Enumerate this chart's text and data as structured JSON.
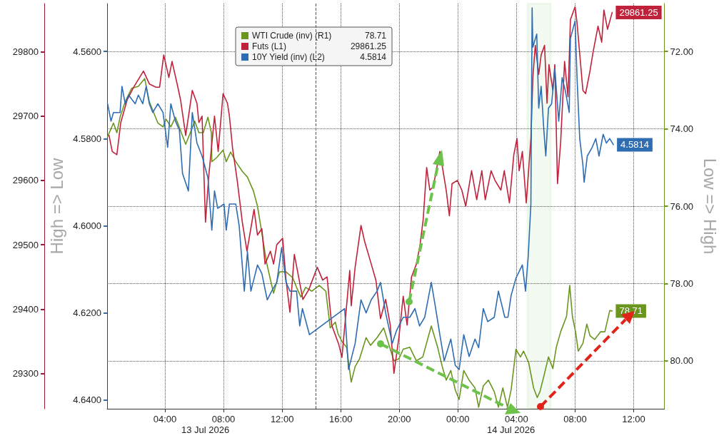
{
  "chart_data": {
    "type": "line",
    "marker": "none",
    "grid": true,
    "legend": "top",
    "xlim": [
      "2026-07-13T00:03",
      "2026-07-14T14:06"
    ],
    "xticks": [
      {
        "value": "2026-07-13T04:00",
        "label": "04:00"
      },
      {
        "value": "2026-07-13T08:00",
        "label": "08:00"
      },
      {
        "value": "2026-07-13T12:00",
        "label": "12:00"
      },
      {
        "value": "2026-07-13T16:00",
        "label": "16:00"
      },
      {
        "value": "2026-07-13T20:00",
        "label": "20:00"
      },
      {
        "value": "2026-07-14T00:00",
        "label": "00:00"
      },
      {
        "value": "2026-07-14T04:00",
        "label": "04:00"
      },
      {
        "value": "2026-07-14T08:00",
        "label": "08:00"
      },
      {
        "value": "2026-07-14T12:00",
        "label": "12:00"
      }
    ],
    "ylim": [
      29245,
      29875
    ],
    "yticks": [
      29300,
      29400,
      29500,
      29600,
      29700,
      29800
    ],
    "y2lim": [
      4.642,
      4.549
    ],
    "y2ticks": [
      {
        "value": 4.56,
        "label": "4.5600"
      },
      {
        "value": 4.58,
        "label": "4.5800"
      },
      {
        "value": 4.6,
        "label": "4.6000"
      },
      {
        "value": 4.62,
        "label": "4.6200"
      },
      {
        "value": 4.64,
        "label": "4.6400"
      }
    ],
    "y2label": "High => Low",
    "y3lim": [
      81.24,
      70.76
    ],
    "y3ticks": [
      {
        "value": 72,
        "label": "72.00"
      },
      {
        "value": 74,
        "label": "74.00"
      },
      {
        "value": 76,
        "label": "76.00"
      },
      {
        "value": 78,
        "label": "78.00"
      },
      {
        "value": 80,
        "label": "80.00"
      }
    ],
    "y3label": "Low => High",
    "ref_lines": [
      {
        "axis": "x",
        "value": "2026-07-13T14:18",
        "label": null,
        "color": "#555555",
        "line_style": "dashed"
      }
    ],
    "bands": [
      {
        "axis": "x",
        "from": "2026-07-14T04:45",
        "to": "2026-07-14T06:20",
        "label": null,
        "color": "#6cc24a"
      }
    ],
    "annotations": [
      "13 Jul 2026",
      "14 Jul 2026"
    ],
    "series": [
      {
        "name": "WTI Crude (inv) (R1)",
        "color": "#6a961f",
        "axis": "y3",
        "x": [
          "2026-07-13T00:05",
          "2026-07-13T00:29",
          "2026-07-13T00:43",
          "2026-07-13T00:56",
          "2026-07-13T01:17",
          "2026-07-13T01:44",
          "2026-07-13T02:11",
          "2026-07-13T02:37",
          "2026-07-13T02:56",
          "2026-07-13T03:12",
          "2026-07-13T03:31",
          "2026-07-13T03:52",
          "2026-07-13T04:05",
          "2026-07-13T04:24",
          "2026-07-13T04:43",
          "2026-07-13T05:04",
          "2026-07-13T05:25",
          "2026-07-13T05:44",
          "2026-07-13T06:02",
          "2026-07-13T06:19",
          "2026-07-13T06:37",
          "2026-07-13T06:56",
          "2026-07-13T07:10",
          "2026-07-13T07:12",
          "2026-07-13T07:31",
          "2026-07-13T07:58",
          "2026-07-13T08:11",
          "2026-07-13T08:29",
          "2026-07-13T08:50",
          "2026-07-13T09:17",
          "2026-07-13T09:38",
          "2026-07-13T10:02",
          "2026-07-13T10:19",
          "2026-07-13T10:37",
          "2026-07-13T10:56",
          "2026-07-13T11:12",
          "2026-07-13T11:25",
          "2026-07-13T11:49",
          "2026-07-13T12:16",
          "2026-07-13T12:43",
          "2026-07-13T12:59",
          "2026-07-13T13:17",
          "2026-07-13T13:36",
          "2026-07-13T14:02",
          "2026-07-13T14:32",
          "2026-07-13T14:59",
          "2026-07-13T15:17",
          "2026-07-13T15:38",
          "2026-07-13T15:49",
          "2026-07-13T16:05",
          "2026-07-13T16:24",
          "2026-07-13T16:43",
          "2026-07-13T16:59",
          "2026-07-13T17:17",
          "2026-07-13T17:44",
          "2026-07-13T18:02",
          "2026-07-13T18:29",
          "2026-07-13T18:56",
          "2026-07-13T19:23",
          "2026-07-13T19:38",
          "2026-07-13T19:58",
          "2026-07-13T20:16",
          "2026-07-13T20:43",
          "2026-07-13T21:10",
          "2026-07-13T21:36",
          "2026-07-13T22:11",
          "2026-07-13T22:37",
          "2026-07-13T22:56",
          "2026-07-13T23:12",
          "2026-07-13T23:31",
          "2026-07-13T23:49",
          "2026-07-14T00:05",
          "2026-07-14T00:24",
          "2026-07-14T00:46",
          "2026-07-14T01:10",
          "2026-07-14T01:25",
          "2026-07-14T01:44",
          "2026-07-14T02:05",
          "2026-07-14T02:29",
          "2026-07-14T02:46",
          "2026-07-14T03:04",
          "2026-07-14T03:23",
          "2026-07-14T03:38",
          "2026-07-14T03:58",
          "2026-07-14T04:16",
          "2026-07-14T04:29",
          "2026-07-14T04:50",
          "2026-07-14T05:10",
          "2026-07-14T05:25",
          "2026-07-14T05:36",
          "2026-07-14T05:52",
          "2026-07-14T06:11",
          "2026-07-14T06:29",
          "2026-07-14T06:43",
          "2026-07-14T07:01",
          "2026-07-14T07:25",
          "2026-07-14T07:38",
          "2026-07-14T07:49",
          "2026-07-14T08:02",
          "2026-07-14T08:13",
          "2026-07-14T08:32",
          "2026-07-14T08:48",
          "2026-07-14T09:01",
          "2026-07-14T09:20",
          "2026-07-14T09:44",
          "2026-07-14T10:02",
          "2026-07-14T10:22",
          "2026-07-14T10:32"
        ],
        "values": [
          74.2,
          73.85,
          74.1,
          73.7,
          73.3,
          72.95,
          72.9,
          72.7,
          73.3,
          73.55,
          73.85,
          73.95,
          73.75,
          73.95,
          73.7,
          74.05,
          74.4,
          74.1,
          73.8,
          74.1,
          74.1,
          73.7,
          74.1,
          74.85,
          74.75,
          74.55,
          74.85,
          74.6,
          74.85,
          75.1,
          75.25,
          75.6,
          76.0,
          76.7,
          77.45,
          77.9,
          78.25,
          77.7,
          77.7,
          77.85,
          78.1,
          78.35,
          78.1,
          78.2,
          78.05,
          78.2,
          79.15,
          79.0,
          79.3,
          79.5,
          79.65,
          80.55,
          80.15,
          79.95,
          79.4,
          79.6,
          79.4,
          79.15,
          79.7,
          80.0,
          79.95,
          79.7,
          79.65,
          80.0,
          79.9,
          79.1,
          79.65,
          80.15,
          80.5,
          80.25,
          80.75,
          81.0,
          80.25,
          80.5,
          80.7,
          81.2,
          80.65,
          80.5,
          80.8,
          81.2,
          80.7,
          81.2,
          80.75,
          79.7,
          79.9,
          79.75,
          80.05,
          80.7,
          80.95,
          80.8,
          80.4,
          79.9,
          80.2,
          79.65,
          79.25,
          78.85,
          78.05,
          78.85,
          79.25,
          79.75,
          79.55,
          79.05,
          79.35,
          79.45,
          79.25,
          79.25,
          78.7,
          78.71
        ],
        "value_labels": [
          null,
          null,
          null,
          null,
          null,
          null,
          null,
          null,
          null,
          null,
          null,
          null,
          null,
          null,
          null,
          null,
          null,
          null,
          null,
          null,
          null,
          null,
          null,
          null,
          null,
          null,
          null,
          null,
          null,
          null,
          null,
          null,
          null,
          null,
          null,
          null,
          null,
          null,
          null,
          null,
          null,
          null,
          null,
          null,
          null,
          null,
          null,
          null,
          null,
          null,
          null,
          null,
          null,
          null,
          null,
          null,
          null,
          null,
          null,
          null,
          null,
          null,
          null,
          null,
          null,
          null,
          null,
          null,
          null,
          null,
          null,
          null,
          null,
          null,
          null,
          null,
          null,
          null,
          null,
          null,
          null,
          null,
          null,
          null,
          null,
          null,
          null,
          null,
          null,
          null,
          null,
          null,
          null,
          null,
          null,
          null,
          null,
          null,
          null,
          null,
          null,
          null,
          null,
          null,
          null,
          null,
          null,
          "78.71"
        ]
      },
      {
        "name": "Futs (L1)",
        "color": "#c0223b",
        "axis": "y",
        "x": [
          "2026-07-13T00:11",
          "2026-07-13T00:24",
          "2026-07-13T00:43",
          "2026-07-13T00:59",
          "2026-07-13T01:25",
          "2026-07-13T01:52",
          "2026-07-13T02:32",
          "2026-07-13T02:56",
          "2026-07-13T03:23",
          "2026-07-13T03:38",
          "2026-07-13T03:55",
          "2026-07-13T04:16",
          "2026-07-13T04:29",
          "2026-07-13T04:50",
          "2026-07-13T05:04",
          "2026-07-13T05:25",
          "2026-07-13T05:52",
          "2026-07-13T06:11",
          "2026-07-13T06:19",
          "2026-07-13T06:32",
          "2026-07-13T06:46",
          "2026-07-13T06:59",
          "2026-07-13T07:23",
          "2026-07-13T07:38",
          "2026-07-13T07:58",
          "2026-07-13T08:16",
          "2026-07-13T08:24",
          "2026-07-13T08:37",
          "2026-07-13T08:56",
          "2026-07-13T09:17",
          "2026-07-13T09:36",
          "2026-07-13T10:05",
          "2026-07-13T10:19",
          "2026-07-13T10:37",
          "2026-07-13T10:50",
          "2026-07-13T11:12",
          "2026-07-13T11:25",
          "2026-07-13T11:38",
          "2026-07-13T12:02",
          "2026-07-13T12:16",
          "2026-07-13T12:32",
          "2026-07-13T12:50",
          "2026-07-13T13:10",
          "2026-07-13T13:25",
          "2026-07-13T13:49",
          "2026-07-13T14:24",
          "2026-07-13T14:46",
          "2026-07-13T15:04",
          "2026-07-13T15:23",
          "2026-07-13T15:52",
          "2026-07-13T16:05",
          "2026-07-13T16:37",
          "2026-07-13T16:43",
          "2026-07-13T16:59",
          "2026-07-13T17:23",
          "2026-07-13T17:38",
          "2026-07-13T18:05",
          "2026-07-13T18:24",
          "2026-07-13T18:43",
          "2026-07-13T19:04",
          "2026-07-13T19:23",
          "2026-07-13T19:38",
          "2026-07-13T19:58",
          "2026-07-13T20:16",
          "2026-07-13T20:32",
          "2026-07-13T20:50",
          "2026-07-13T21:10",
          "2026-07-13T21:25",
          "2026-07-13T21:38",
          "2026-07-13T21:52",
          "2026-07-13T22:05",
          "2026-07-13T22:19",
          "2026-07-13T22:46",
          "2026-07-13T23:12",
          "2026-07-13T23:25",
          "2026-07-13T23:36",
          "2026-07-13T23:58",
          "2026-07-14T00:16",
          "2026-07-14T00:32",
          "2026-07-14T00:56",
          "2026-07-14T01:17",
          "2026-07-14T01:38",
          "2026-07-14T01:52",
          "2026-07-14T02:16",
          "2026-07-14T02:32",
          "2026-07-14T02:56",
          "2026-07-14T03:10",
          "2026-07-14T03:31",
          "2026-07-14T03:49",
          "2026-07-14T04:02",
          "2026-07-14T04:11",
          "2026-07-14T04:24",
          "2026-07-14T04:40",
          "2026-07-14T04:59",
          "2026-07-14T05:07",
          "2026-07-14T05:17",
          "2026-07-14T05:31",
          "2026-07-14T05:41",
          "2026-07-14T05:55",
          "2026-07-14T06:05",
          "2026-07-14T06:13",
          "2026-07-14T06:29",
          "2026-07-14T06:37",
          "2026-07-14T06:48",
          "2026-07-14T07:01",
          "2026-07-14T07:17",
          "2026-07-14T07:31",
          "2026-07-14T07:41",
          "2026-07-14T08:00",
          "2026-07-14T08:08",
          "2026-07-14T08:32",
          "2026-07-14T08:43",
          "2026-07-14T09:01",
          "2026-07-14T09:14",
          "2026-07-14T09:34",
          "2026-07-14T09:49",
          "2026-07-14T09:58",
          "2026-07-14T10:13",
          "2026-07-14T10:32"
        ],
        "values": [
          29670,
          29645,
          29640,
          29690,
          29725,
          29745,
          29770,
          29750,
          29745,
          29745,
          29795,
          29760,
          29785,
          29750,
          29725,
          29670,
          29740,
          29720,
          29690,
          29700,
          29535,
          29605,
          29700,
          29645,
          29735,
          29720,
          29700,
          29650,
          29600,
          29535,
          29490,
          29555,
          29515,
          29525,
          29470,
          29490,
          29470,
          29500,
          29510,
          29445,
          29395,
          29485,
          29445,
          29415,
          29430,
          29465,
          29445,
          29450,
          29375,
          29345,
          29325,
          29460,
          29405,
          29465,
          29530,
          29505,
          29470,
          29445,
          29385,
          29415,
          29375,
          29300,
          29355,
          29420,
          29375,
          29450,
          29470,
          29500,
          29540,
          29620,
          29585,
          29590,
          29645,
          29585,
          29545,
          29595,
          29600,
          29585,
          29560,
          29615,
          29570,
          29615,
          29570,
          29615,
          29600,
          29585,
          29615,
          29565,
          29640,
          29665,
          29615,
          29645,
          29565,
          29665,
          29760,
          29810,
          29765,
          29795,
          29810,
          29720,
          29780,
          29740,
          29780,
          29595,
          29660,
          29785,
          29730,
          29850,
          29870,
          29845,
          29740,
          29735,
          29770,
          29800,
          29840,
          29815,
          29865,
          29835,
          29861.25
        ],
        "value_labels": [
          null,
          null,
          null,
          null,
          null,
          null,
          null,
          null,
          null,
          null,
          null,
          null,
          null,
          null,
          null,
          null,
          null,
          null,
          null,
          null,
          null,
          null,
          null,
          null,
          null,
          null,
          null,
          null,
          null,
          null,
          null,
          null,
          null,
          null,
          null,
          null,
          null,
          null,
          null,
          null,
          null,
          null,
          null,
          null,
          null,
          null,
          null,
          null,
          null,
          null,
          null,
          null,
          null,
          null,
          null,
          null,
          null,
          null,
          null,
          null,
          null,
          null,
          null,
          null,
          null,
          null,
          null,
          null,
          null,
          null,
          null,
          null,
          null,
          null,
          null,
          null,
          null,
          null,
          null,
          null,
          null,
          null,
          null,
          null,
          null,
          null,
          null,
          null,
          null,
          null,
          null,
          null,
          null,
          null,
          null,
          null,
          null,
          null,
          null,
          null,
          null,
          null,
          null,
          null,
          null,
          null,
          null,
          null,
          null,
          null,
          null,
          null,
          null,
          null,
          null,
          null,
          null,
          null,
          "29861.25"
        ]
      },
      {
        "name": "10Y Yield (inv) (L2)",
        "color": "#2f6db3",
        "axis": "y2",
        "x": [
          "2026-07-13T00:05",
          "2026-07-13T00:19",
          "2026-07-13T00:29",
          "2026-07-13T00:56",
          "2026-07-13T01:04",
          "2026-07-13T01:17",
          "2026-07-13T01:31",
          "2026-07-13T01:58",
          "2026-07-13T02:11",
          "2026-07-13T02:29",
          "2026-07-13T02:43",
          "2026-07-13T02:56",
          "2026-07-13T03:10",
          "2026-07-13T03:31",
          "2026-07-13T03:52",
          "2026-07-13T04:11",
          "2026-07-13T04:24",
          "2026-07-13T04:43",
          "2026-07-13T04:59",
          "2026-07-13T05:12",
          "2026-07-13T05:36",
          "2026-07-13T05:52",
          "2026-07-13T06:11",
          "2026-07-13T06:32",
          "2026-07-13T06:56",
          "2026-07-13T07:12",
          "2026-07-13T07:23",
          "2026-07-13T07:36",
          "2026-07-13T08:02",
          "2026-07-13T08:11",
          "2026-07-13T08:24",
          "2026-07-13T08:50",
          "2026-07-13T09:04",
          "2026-07-13T09:25",
          "2026-07-13T09:38",
          "2026-07-13T09:52",
          "2026-07-13T10:19",
          "2026-07-13T10:37",
          "2026-07-13T10:59",
          "2026-07-13T11:17",
          "2026-07-13T11:38",
          "2026-07-13T11:58",
          "2026-07-13T12:16",
          "2026-07-13T12:32",
          "2026-07-13T12:59",
          "2026-07-13T13:12",
          "2026-07-13T13:23",
          "2026-07-13T13:52",
          "2026-07-13T16:16",
          "2026-07-13T16:32",
          "2026-07-13T16:59",
          "2026-07-13T17:23",
          "2026-07-13T17:44",
          "2026-07-13T18:05",
          "2026-07-13T18:29",
          "2026-07-13T18:43",
          "2026-07-13T19:04",
          "2026-07-13T19:31",
          "2026-07-13T19:49",
          "2026-07-13T20:16",
          "2026-07-13T20:43",
          "2026-07-13T21:04",
          "2026-07-13T21:23",
          "2026-07-13T21:44",
          "2026-07-13T22:11",
          "2026-07-13T22:29",
          "2026-07-13T22:46",
          "2026-07-13T23:04",
          "2026-07-13T23:31",
          "2026-07-13T23:49",
          "2026-07-14T00:05",
          "2026-07-14T00:24",
          "2026-07-14T00:46",
          "2026-07-14T01:10",
          "2026-07-14T01:25",
          "2026-07-14T01:44",
          "2026-07-14T02:02",
          "2026-07-14T02:29",
          "2026-07-14T02:46",
          "2026-07-14T03:12",
          "2026-07-14T03:25",
          "2026-07-14T03:38",
          "2026-07-14T03:58",
          "2026-07-14T04:24",
          "2026-07-14T04:37",
          "2026-07-14T04:48",
          "2026-07-14T04:59",
          "2026-07-14T05:04",
          "2026-07-14T05:07",
          "2026-07-14T05:23",
          "2026-07-14T05:31",
          "2026-07-14T05:41",
          "2026-07-14T05:52",
          "2026-07-14T06:00",
          "2026-07-14T06:11",
          "2026-07-14T06:24",
          "2026-07-14T06:37",
          "2026-07-14T06:53",
          "2026-07-14T07:07",
          "2026-07-14T07:20",
          "2026-07-14T07:36",
          "2026-07-14T07:41",
          "2026-07-14T08:00",
          "2026-07-14T08:08",
          "2026-07-14T08:19",
          "2026-07-14T08:32",
          "2026-07-14T08:37",
          "2026-07-14T08:50",
          "2026-07-14T09:10",
          "2026-07-14T09:25",
          "2026-07-14T09:38",
          "2026-07-14T09:55",
          "2026-07-14T10:08",
          "2026-07-14T10:22",
          "2026-07-14T10:37"
        ],
        "values": [
          4.572,
          4.576,
          4.574,
          4.574,
          4.568,
          4.572,
          4.57,
          4.572,
          4.57,
          4.572,
          4.568,
          4.572,
          4.574,
          4.572,
          4.574,
          4.582,
          4.572,
          4.576,
          4.578,
          4.588,
          4.592,
          4.574,
          4.581,
          4.584,
          4.589,
          4.601,
          4.592,
          4.596,
          4.595,
          4.601,
          4.595,
          4.595,
          4.6,
          4.615,
          4.606,
          4.615,
          4.609,
          4.611,
          4.617,
          4.615,
          4.613,
          4.605,
          4.613,
          4.615,
          4.615,
          4.623,
          4.619,
          4.625,
          4.619,
          4.633,
          4.627,
          4.617,
          4.62,
          4.617,
          4.615,
          4.613,
          4.62,
          4.627,
          4.624,
          4.621,
          4.621,
          4.619,
          4.623,
          4.621,
          4.613,
          4.619,
          4.625,
          4.631,
          4.626,
          4.632,
          4.633,
          4.625,
          4.63,
          4.626,
          4.628,
          4.619,
          4.622,
          4.621,
          4.615,
          4.621,
          4.621,
          4.616,
          4.612,
          4.609,
          4.615,
          4.607,
          4.595,
          4.55,
          4.559,
          4.556,
          4.573,
          4.568,
          4.578,
          4.584,
          4.573,
          4.572,
          4.564,
          4.576,
          4.566,
          4.569,
          4.574,
          4.557,
          4.553,
          4.566,
          4.58,
          4.586,
          4.59,
          4.584,
          4.582,
          4.58,
          4.584,
          4.579,
          4.581,
          4.58,
          4.5814
        ],
        "value_labels": [
          null,
          null,
          null,
          null,
          null,
          null,
          null,
          null,
          null,
          null,
          null,
          null,
          null,
          null,
          null,
          null,
          null,
          null,
          null,
          null,
          null,
          null,
          null,
          null,
          null,
          null,
          null,
          null,
          null,
          null,
          null,
          null,
          null,
          null,
          null,
          null,
          null,
          null,
          null,
          null,
          null,
          null,
          null,
          null,
          null,
          null,
          null,
          null,
          null,
          null,
          null,
          null,
          null,
          null,
          null,
          null,
          null,
          null,
          null,
          null,
          null,
          null,
          null,
          null,
          null,
          null,
          null,
          null,
          null,
          null,
          null,
          null,
          null,
          null,
          null,
          null,
          null,
          null,
          null,
          null,
          null,
          null,
          null,
          null,
          null,
          null,
          null,
          null,
          null,
          null,
          null,
          null,
          null,
          null,
          null,
          null,
          null,
          null,
          null,
          null,
          null,
          null,
          null,
          null,
          null,
          null,
          null,
          null,
          null,
          null,
          null,
          null,
          null,
          null,
          "4.5814"
        ]
      }
    ]
  }
}
